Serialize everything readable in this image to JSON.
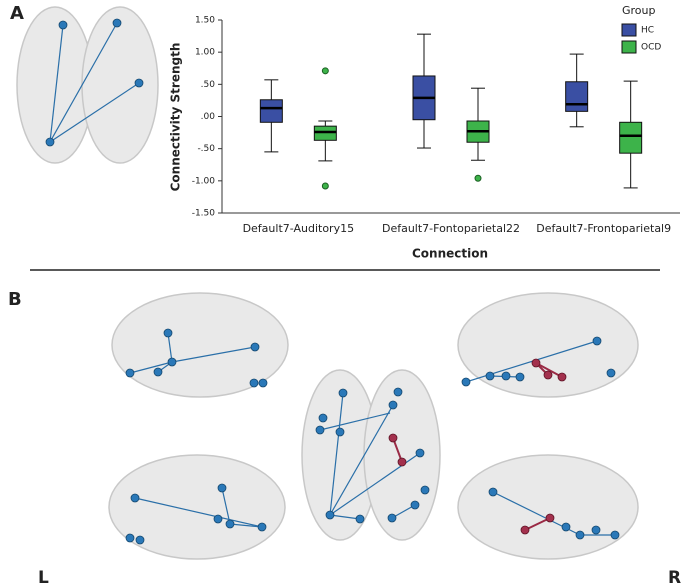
{
  "panel_labels": {
    "a": "A",
    "b": "B"
  },
  "side_labels": {
    "left": "L",
    "right": "R"
  },
  "chart_data": {
    "type": "box",
    "x_label": "Connection",
    "y_label": "Connectivity Strength",
    "legend_title": "Group",
    "legend": "upper right",
    "categories": [
      "Default7-Auditory15",
      "Default7-Fontoparietal22",
      "Default7-Frontoparietal9"
    ],
    "ylim": [
      -1.5,
      1.5
    ],
    "yticks": [
      {
        "value": -1.5,
        "label": "-1.50"
      },
      {
        "value": -1.0,
        "label": "-1.00"
      },
      {
        "value": -0.5,
        "label": "-.50"
      },
      {
        "value": 0,
        "label": ".00"
      },
      {
        "value": 0.5,
        "label": ".50"
      },
      {
        "value": 1.0,
        "label": "1.00"
      },
      {
        "value": 1.5,
        "label": "1.50"
      }
    ],
    "series": [
      {
        "name": "HC",
        "color": "#3a4fa3",
        "boxes": [
          {
            "whislo": -0.55,
            "q1": -0.09,
            "med": 0.13,
            "q3": 0.26,
            "whishi": 0.57,
            "fliers": []
          },
          {
            "whislo": -0.49,
            "q1": -0.05,
            "med": 0.29,
            "q3": 0.63,
            "whishi": 1.28,
            "fliers": []
          },
          {
            "whislo": -0.16,
            "q1": 0.08,
            "med": 0.19,
            "q3": 0.54,
            "whishi": 0.97,
            "fliers": []
          }
        ]
      },
      {
        "name": "OCD",
        "color": "#3db34a",
        "boxes": [
          {
            "whislo": -0.69,
            "q1": -0.37,
            "med": -0.24,
            "q3": -0.15,
            "whishi": -0.07,
            "fliers": [
              0.71,
              -1.08
            ]
          },
          {
            "whislo": -0.68,
            "q1": -0.4,
            "med": -0.23,
            "q3": -0.07,
            "whishi": 0.44,
            "fliers": [
              -0.96
            ]
          },
          {
            "whislo": -1.11,
            "q1": -0.57,
            "med": -0.3,
            "q3": -0.09,
            "whishi": 0.55,
            "fliers": []
          }
        ]
      }
    ]
  }
}
